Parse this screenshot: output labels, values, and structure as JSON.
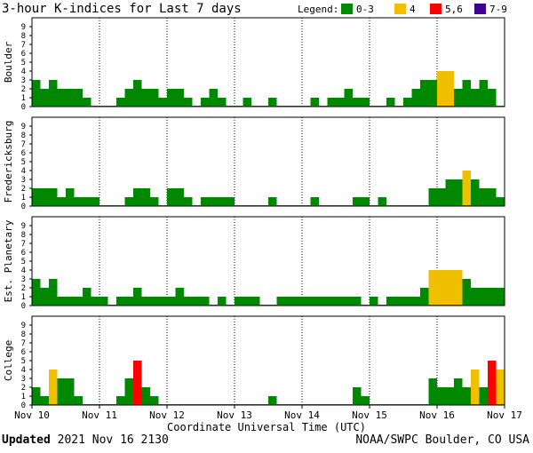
{
  "chart_data": {
    "type": "bar",
    "title": "3-hour K-indices for Last 7 days",
    "legend": {
      "label": "Legend:",
      "placement": "top-right",
      "entries": [
        {
          "label": "0-3",
          "color": "#008800"
        },
        {
          "label": "4",
          "color": "#f0c000"
        },
        {
          "label": "5,6",
          "color": "#ff0000"
        },
        {
          "label": "7-9",
          "color": "#400090"
        }
      ]
    },
    "xlabel": "Coordinate Universal Time (UTC)",
    "x_tick_labels": [
      "Nov 10",
      "Nov 11",
      "Nov 12",
      "Nov 13",
      "Nov 14",
      "Nov 15",
      "Nov 16",
      "Nov 17"
    ],
    "y_ticks": [
      "0",
      "1",
      "2",
      "3",
      "4",
      "5",
      "6",
      "7",
      "8",
      "9"
    ],
    "ylim": [
      0,
      9
    ],
    "interval_hours": 3,
    "series": [
      {
        "name": "Boulder",
        "values": [
          3,
          2,
          3,
          2,
          2,
          2,
          1,
          0,
          0,
          0,
          1,
          2,
          3,
          2,
          2,
          1,
          2,
          2,
          1,
          0,
          1,
          2,
          1,
          0,
          0,
          1,
          0,
          0,
          1,
          0,
          0,
          0,
          0,
          1,
          0,
          1,
          1,
          2,
          1,
          1,
          0,
          0,
          1,
          0,
          1,
          2,
          3,
          3,
          4,
          4,
          2,
          3,
          2,
          3,
          2,
          0
        ]
      },
      {
        "name": "Fredericksburg",
        "values": [
          2,
          2,
          2,
          1,
          2,
          1,
          1,
          1,
          0,
          0,
          0,
          1,
          2,
          2,
          1,
          0,
          2,
          2,
          1,
          0,
          1,
          1,
          1,
          1,
          0,
          0,
          0,
          0,
          1,
          0,
          0,
          0,
          0,
          1,
          0,
          0,
          0,
          0,
          1,
          1,
          0,
          1,
          0,
          0,
          0,
          0,
          0,
          2,
          2,
          3,
          3,
          4,
          3,
          2,
          2,
          1,
          2,
          2,
          0
        ]
      },
      {
        "name": "Est. Planetary",
        "values": [
          3,
          2,
          3,
          1,
          1,
          1,
          2,
          1,
          1,
          0,
          1,
          1,
          2,
          1,
          1,
          1,
          1,
          2,
          1,
          1,
          1,
          0,
          1,
          0,
          1,
          1,
          1,
          0,
          0,
          1,
          1,
          1,
          1,
          1,
          1,
          1,
          1,
          1,
          1,
          0,
          1,
          0,
          1,
          1,
          1,
          1,
          2,
          4,
          4,
          4,
          4,
          3,
          2,
          2,
          2,
          2
        ]
      },
      {
        "name": "College",
        "values": [
          2,
          1,
          4,
          3,
          3,
          1,
          0,
          0,
          0,
          0,
          1,
          3,
          5,
          2,
          1,
          0,
          0,
          0,
          0,
          0,
          0,
          0,
          0,
          0,
          0,
          0,
          0,
          0,
          1,
          0,
          0,
          0,
          0,
          0,
          0,
          0,
          0,
          0,
          2,
          1,
          0,
          0,
          0,
          0,
          0,
          0,
          0,
          3,
          2,
          2,
          3,
          2,
          4,
          2,
          5,
          4,
          3,
          2,
          0
        ]
      }
    ]
  },
  "footer": {
    "updated_label": "Updated",
    "updated_value": " 2021 Nov 16 2130",
    "credit": "NOAA/SWPC Boulder, CO USA"
  }
}
